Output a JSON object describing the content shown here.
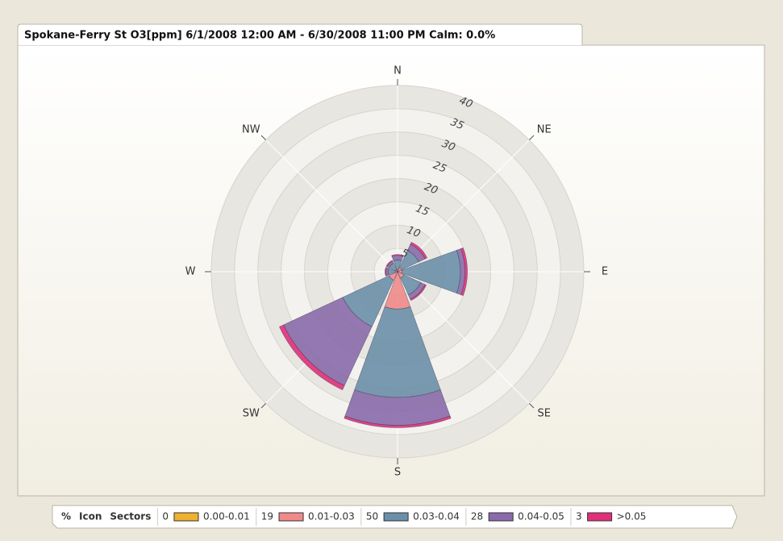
{
  "chart_data": {
    "type": "windrose",
    "title": "Spokane-Ferry St O3[ppm] 6/1/2008 12:00 AM - 6/30/2008 11:00 PM Calm: 0.0%",
    "directions": [
      "N",
      "NE",
      "E",
      "SE",
      "S",
      "SW",
      "W",
      "NW"
    ],
    "rlim": [
      0,
      40
    ],
    "rticks": [
      5,
      10,
      15,
      20,
      25,
      30,
      35,
      40
    ],
    "legend_headers": [
      "%",
      "Icon",
      "Sectors"
    ],
    "series": [
      {
        "name": "0.00-0.01",
        "color": "#f0b030",
        "percent": 0,
        "values": [
          0,
          0,
          0,
          0,
          0,
          0,
          0,
          0
        ]
      },
      {
        "name": "0.01-0.03",
        "color": "#f08a8a",
        "percent": 19,
        "values": [
          0.5,
          1,
          1,
          1.5,
          8,
          2,
          0.5,
          0.5
        ]
      },
      {
        "name": "0.03-0.04",
        "color": "#6b8fa8",
        "percent": 50,
        "values": [
          2,
          4,
          12.5,
          4,
          19,
          11,
          1.5,
          1.5
        ]
      },
      {
        "name": "0.04-0.05",
        "color": "#8a6aaa",
        "percent": 28,
        "values": [
          1,
          1.5,
          1,
          1,
          6,
          14,
          0.5,
          0.5
        ]
      },
      {
        "name": ">0.05",
        "color": "#e0307a",
        "percent": 3,
        "values": [
          0.2,
          0.5,
          0.5,
          0.3,
          0.5,
          1,
          0.2,
          0.2
        ]
      }
    ]
  }
}
